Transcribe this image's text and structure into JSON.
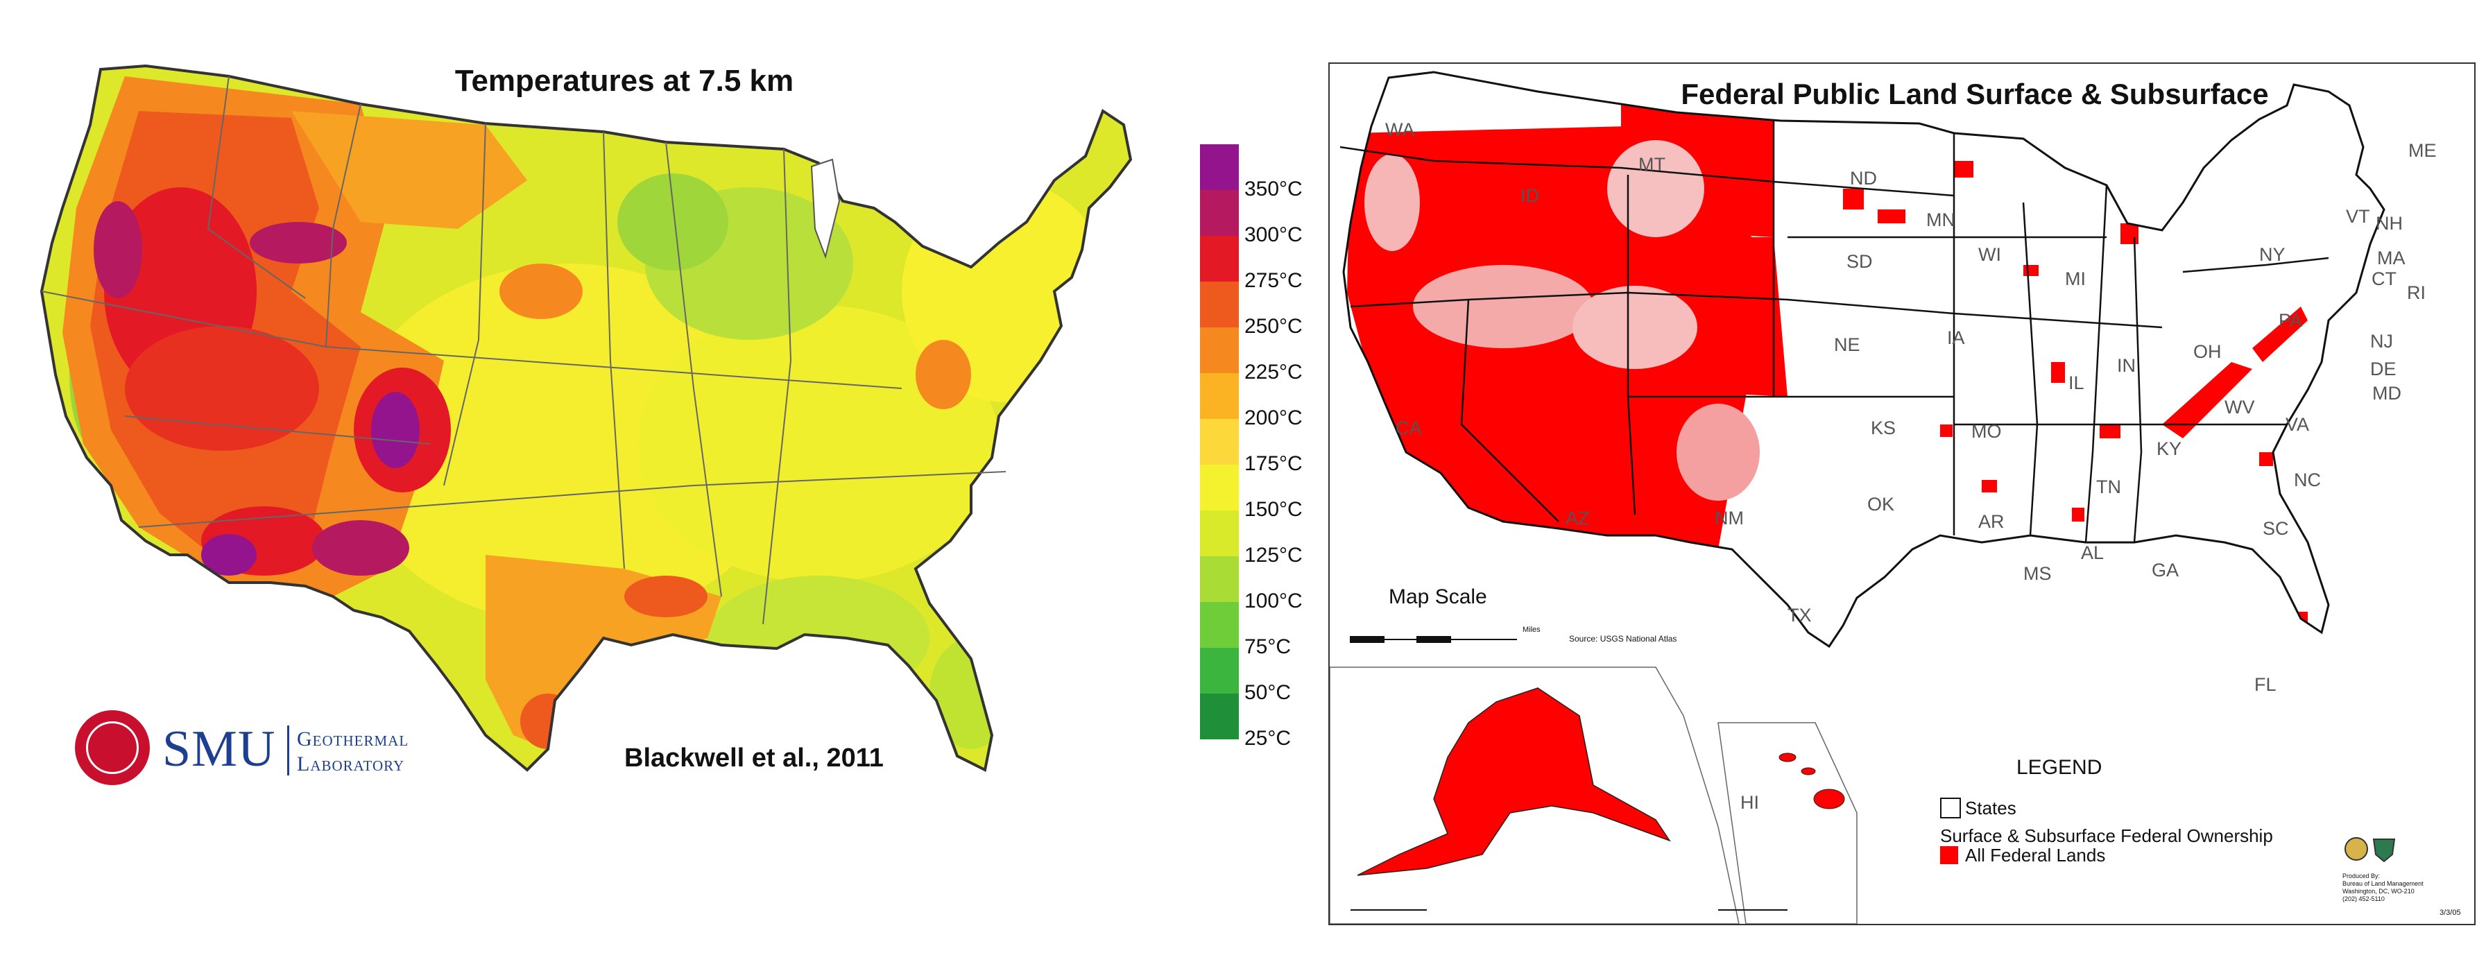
{
  "left_map": {
    "title": "Temperatures at 7.5 km",
    "citation": "Blackwell et al., 2011",
    "logo": {
      "name": "SMU",
      "sub_line1": "Geothermal",
      "sub_line2": "Laboratory"
    },
    "legend": [
      {
        "label": "350°C",
        "color": "#93148c"
      },
      {
        "label": "300°C",
        "color": "#b5195f"
      },
      {
        "label": "275°C",
        "color": "#e31a25"
      },
      {
        "label": "250°C",
        "color": "#ee5a1d"
      },
      {
        "label": "225°C",
        "color": "#f5891f"
      },
      {
        "label": "200°C",
        "color": "#fbb223"
      },
      {
        "label": "175°C",
        "color": "#fdd83a"
      },
      {
        "label": "150°C",
        "color": "#f4f12e"
      },
      {
        "label": "125°C",
        "color": "#d8ea2a"
      },
      {
        "label": "100°C",
        "color": "#a9dc34"
      },
      {
        "label": "75°C",
        "color": "#6fcd3a"
      },
      {
        "label": "50°C",
        "color": "#3bb53e"
      },
      {
        "label": "25°C",
        "color": "#1f8f3a"
      }
    ]
  },
  "right_map": {
    "title": "Federal Public Land Surface & Subsurface",
    "state_labels": [
      "WA",
      "ID",
      "MT",
      "ND",
      "MN",
      "ME",
      "SD",
      "WI",
      "MI",
      "VT",
      "NH",
      "NY",
      "MA",
      "CT",
      "RI",
      "PA",
      "NJ",
      "IA",
      "NE",
      "OH",
      "IN",
      "IL",
      "DE",
      "MD",
      "CA",
      "KS",
      "MO",
      "WV",
      "VA",
      "KY",
      "NC",
      "TN",
      "OK",
      "AR",
      "NM",
      "AZ",
      "SC",
      "TX",
      "MS",
      "AL",
      "GA",
      "FL",
      "HI"
    ],
    "map_scale_label": "Map Scale",
    "scale_miles": "Miles",
    "source": "Source: USGS National Atlas",
    "legend": {
      "title": "LEGEND",
      "states": "States",
      "ownership": "Surface & Subsurface Federal Ownership",
      "federal_lands": "All Federal Lands"
    },
    "credit": [
      "Produced By:",
      "Bureau of Land Management",
      "Washington, DC, WO-210",
      "(202) 452-5110"
    ],
    "date": "3/3/05",
    "colors": {
      "federal": "#ff0000",
      "outline": "#111111"
    }
  }
}
